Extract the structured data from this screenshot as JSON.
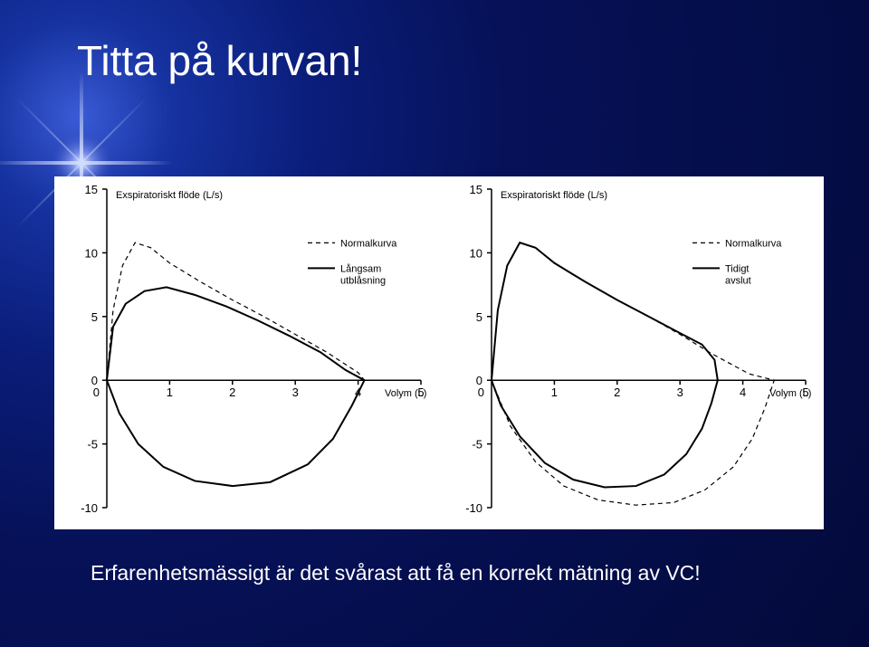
{
  "slide": {
    "title": "Titta på kurvan!",
    "caption": "Erfarenhetsmässigt är det svårast att få en korrekt mätning av VC!",
    "bg_gradient_inner": "#3a5bd6",
    "bg_gradient_outer": "#030a3a",
    "title_color": "#ffffff",
    "caption_color": "#ffffff",
    "title_fontsize": 46,
    "caption_fontsize": 23
  },
  "chart_common": {
    "type": "flow-volume-loop",
    "panel_background": "#ffffff",
    "axis_color": "#000000",
    "text_color": "#000000",
    "line_width_normal": 1.2,
    "line_width_case": 2.0,
    "x_axis": {
      "label": "Volym (L)",
      "min": 0,
      "max": 5,
      "ticks": [
        0,
        1,
        2,
        3,
        4,
        5
      ],
      "label_fontsize": 11
    },
    "y_axis": {
      "label": "Exspiratoriskt flöde (L/s)",
      "min": -10,
      "max": 15,
      "ticks": [
        -10,
        -5,
        0,
        5,
        10,
        15
      ],
      "label_fontsize": 11
    },
    "tick_fontsize": 13
  },
  "left_chart": {
    "title": null,
    "legend": [
      {
        "name": "normalkurva",
        "label": "Normalkurva",
        "style": "dashed",
        "color": "#000000"
      },
      {
        "name": "langsam",
        "label": "Långsam utblåsning",
        "style": "solid",
        "color": "#000000"
      }
    ],
    "normal_curve": {
      "color": "#000000",
      "dash": "5,4",
      "expiratory": [
        [
          0.0,
          0.0
        ],
        [
          0.1,
          5.5
        ],
        [
          0.25,
          9.0
        ],
        [
          0.45,
          10.8
        ],
        [
          0.7,
          10.4
        ],
        [
          1.0,
          9.2
        ],
        [
          1.5,
          7.7
        ],
        [
          2.0,
          6.3
        ],
        [
          2.5,
          5.0
        ],
        [
          3.0,
          3.6
        ],
        [
          3.5,
          2.2
        ],
        [
          4.0,
          0.6
        ],
        [
          4.1,
          0.0
        ]
      ],
      "inspiratory": [
        [
          4.1,
          0.0
        ],
        [
          3.9,
          -2.0
        ],
        [
          3.6,
          -4.6
        ],
        [
          3.2,
          -6.6
        ],
        [
          2.6,
          -8.0
        ],
        [
          2.0,
          -8.3
        ],
        [
          1.4,
          -7.9
        ],
        [
          0.9,
          -6.8
        ],
        [
          0.5,
          -5.0
        ],
        [
          0.2,
          -2.6
        ],
        [
          0.0,
          0.0
        ]
      ]
    },
    "case_curve": {
      "color": "#000000",
      "dash": null,
      "expiratory": [
        [
          0.0,
          0.0
        ],
        [
          0.1,
          4.2
        ],
        [
          0.3,
          6.0
        ],
        [
          0.6,
          7.0
        ],
        [
          0.95,
          7.3
        ],
        [
          1.4,
          6.7
        ],
        [
          1.9,
          5.8
        ],
        [
          2.4,
          4.7
        ],
        [
          2.9,
          3.5
        ],
        [
          3.4,
          2.2
        ],
        [
          3.8,
          0.8
        ],
        [
          4.1,
          0.0
        ]
      ],
      "inspiratory": [
        [
          4.1,
          0.0
        ],
        [
          3.9,
          -2.0
        ],
        [
          3.6,
          -4.6
        ],
        [
          3.2,
          -6.6
        ],
        [
          2.6,
          -8.0
        ],
        [
          2.0,
          -8.3
        ],
        [
          1.4,
          -7.9
        ],
        [
          0.9,
          -6.8
        ],
        [
          0.5,
          -5.0
        ],
        [
          0.2,
          -2.6
        ],
        [
          0.0,
          0.0
        ]
      ]
    }
  },
  "right_chart": {
    "title": null,
    "legend": [
      {
        "name": "normalkurva",
        "label": "Normalkurva",
        "style": "dashed",
        "color": "#000000"
      },
      {
        "name": "tidigt",
        "label": "Tidigt avslut",
        "style": "solid",
        "color": "#000000"
      }
    ],
    "normal_curve": {
      "color": "#000000",
      "dash": "5,4",
      "expiratory": [
        [
          0.0,
          0.0
        ],
        [
          0.1,
          5.5
        ],
        [
          0.25,
          9.0
        ],
        [
          0.45,
          10.8
        ],
        [
          0.7,
          10.4
        ],
        [
          1.0,
          9.2
        ],
        [
          1.5,
          7.7
        ],
        [
          2.0,
          6.3
        ],
        [
          2.5,
          5.0
        ],
        [
          3.0,
          3.6
        ],
        [
          3.5,
          2.1
        ],
        [
          4.1,
          0.5
        ],
        [
          4.5,
          0.0
        ]
      ],
      "inspiratory": [
        [
          4.5,
          0.0
        ],
        [
          4.35,
          -2.2
        ],
        [
          4.15,
          -4.6
        ],
        [
          3.85,
          -6.8
        ],
        [
          3.4,
          -8.6
        ],
        [
          2.9,
          -9.6
        ],
        [
          2.3,
          -9.8
        ],
        [
          1.7,
          -9.4
        ],
        [
          1.15,
          -8.3
        ],
        [
          0.7,
          -6.4
        ],
        [
          0.3,
          -3.6
        ],
        [
          0.0,
          0.0
        ]
      ]
    },
    "case_curve": {
      "color": "#000000",
      "dash": null,
      "expiratory": [
        [
          0.0,
          0.0
        ],
        [
          0.1,
          5.5
        ],
        [
          0.25,
          9.0
        ],
        [
          0.45,
          10.8
        ],
        [
          0.7,
          10.4
        ],
        [
          1.0,
          9.2
        ],
        [
          1.5,
          7.7
        ],
        [
          2.0,
          6.3
        ],
        [
          2.5,
          5.0
        ],
        [
          3.0,
          3.7
        ],
        [
          3.35,
          2.8
        ],
        [
          3.55,
          1.6
        ],
        [
          3.6,
          0.0
        ]
      ],
      "inspiratory": [
        [
          3.6,
          0.0
        ],
        [
          3.5,
          -1.8
        ],
        [
          3.35,
          -3.8
        ],
        [
          3.1,
          -5.8
        ],
        [
          2.75,
          -7.4
        ],
        [
          2.3,
          -8.3
        ],
        [
          1.8,
          -8.4
        ],
        [
          1.3,
          -7.8
        ],
        [
          0.85,
          -6.5
        ],
        [
          0.45,
          -4.4
        ],
        [
          0.15,
          -2.0
        ],
        [
          0.0,
          0.0
        ]
      ]
    }
  }
}
